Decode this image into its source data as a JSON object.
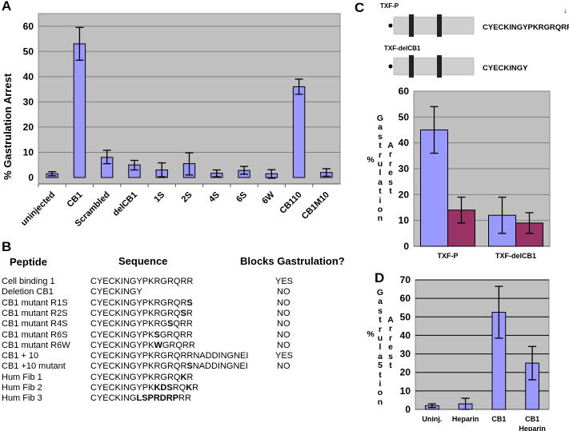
{
  "panels": {
    "a": "A",
    "b": "B",
    "c": "C",
    "d": "D"
  },
  "chart_data": [
    {
      "id": "A",
      "type": "bar",
      "ylabel": "% Gastrulation Arrest",
      "xlabel": "",
      "ylim": [
        0,
        65
      ],
      "yticks": [
        0,
        10,
        20,
        30,
        40,
        50,
        60
      ],
      "grid": true,
      "categories": [
        "uninjected",
        "CB1",
        "Scrambled",
        "delCB1",
        "1S",
        "2S",
        "4S",
        "6S",
        "6W",
        "CB110",
        "CB1M10"
      ],
      "series": [
        {
          "color": "#9999ff",
          "values": [
            1.5,
            53,
            8,
            5,
            3,
            5.5,
            1.7,
            2.8,
            1.5,
            36,
            2
          ],
          "error_low": [
            0.7,
            46.5,
            5.5,
            3,
            0.3,
            1,
            0.3,
            1.3,
            -0.3,
            33,
            0.5
          ],
          "error_high": [
            2.3,
            59.5,
            10.8,
            6.8,
            5.8,
            9.8,
            3,
            4.4,
            3.1,
            39,
            3.5
          ]
        }
      ]
    },
    {
      "id": "C",
      "type": "bar",
      "ylabel": "% Gastrulation Arrest",
      "ylim": [
        0,
        60
      ],
      "yticks": [
        0,
        10,
        20,
        30,
        40,
        50,
        60
      ],
      "grid": true,
      "categories": [
        "TXF-P",
        "TXF-delCB1"
      ],
      "series": [
        {
          "color": "#9999ff",
          "values": [
            45,
            12
          ],
          "error_low": [
            36,
            5
          ],
          "error_high": [
            54,
            19
          ]
        },
        {
          "color": "#993366",
          "values": [
            14,
            9
          ],
          "error_low": [
            9,
            5
          ],
          "error_high": [
            19,
            13
          ]
        }
      ]
    },
    {
      "id": "D",
      "type": "bar",
      "ylabel": "% Gastrula5tion Arrest",
      "ylim": [
        0,
        70
      ],
      "yticks": [
        0,
        10,
        20,
        30,
        40,
        50,
        60,
        70
      ],
      "grid": true,
      "categories": [
        "Uninj.",
        "Heparin",
        "CB1",
        "CB1\nHeparin"
      ],
      "series": [
        {
          "color": "#9999ff",
          "values": [
            2,
            3,
            52.5,
            25
          ],
          "error_low": [
            1,
            0,
            38.5,
            16
          ],
          "error_high": [
            3,
            6,
            66.5,
            34
          ]
        }
      ]
    }
  ],
  "diagram_c": {
    "constructs": [
      {
        "name": "TXF-P",
        "sequence": "CYECKINGYPKRGRQRR"
      },
      {
        "name": "TXF-delCB1",
        "sequence": "CYECKINGY"
      }
    ],
    "arrow": "↓"
  },
  "table_b": {
    "headers": [
      "Peptide",
      "Sequence",
      "Blocks Gastrulation?"
    ],
    "rows": [
      {
        "peptide": "Cell binding 1",
        "seq": [
          {
            "t": "CYECKINGYPKRGRQRR",
            "b": false
          }
        ],
        "blocks": "YES"
      },
      {
        "peptide": "Deletion CB1",
        "seq": [
          {
            "t": "CYECKINGY",
            "b": false
          }
        ],
        "blocks": "NO"
      },
      {
        "peptide": "CB1 mutant R1S",
        "seq": [
          {
            "t": "CYECKINGYPKRGRQR",
            "b": false
          },
          {
            "t": "S",
            "b": true
          }
        ],
        "blocks": "NO"
      },
      {
        "peptide": "CB1 mutant R2S",
        "seq": [
          {
            "t": "CYECKINGYPKRGRQ",
            "b": false
          },
          {
            "t": "S",
            "b": true
          },
          {
            "t": "R",
            "b": false
          }
        ],
        "blocks": "NO"
      },
      {
        "peptide": "CB1 mutant R4S",
        "seq": [
          {
            "t": "CYECKINGYPKRG",
            "b": false
          },
          {
            "t": "S",
            "b": true
          },
          {
            "t": "QRR",
            "b": false
          }
        ],
        "blocks": "NO"
      },
      {
        "peptide": "CB1 mutant R6S",
        "seq": [
          {
            "t": "CYECKINGYPK",
            "b": false
          },
          {
            "t": "S",
            "b": true
          },
          {
            "t": "GRQRR",
            "b": false
          }
        ],
        "blocks": "NO"
      },
      {
        "peptide": "CB1 mutant R6W",
        "seq": [
          {
            "t": "CYECKINGYPK",
            "b": false
          },
          {
            "t": "W",
            "b": true
          },
          {
            "t": "GRQRR",
            "b": false
          }
        ],
        "blocks": "NO"
      },
      {
        "peptide": "CB1 + 10",
        "seq": [
          {
            "t": "CYECKINGYPKRGRQRRNADDINGNEI",
            "b": false
          }
        ],
        "blocks": "YES"
      },
      {
        "peptide": "CB1 +10 mutant",
        "seq": [
          {
            "t": "CYECKINGYPKRGRQR",
            "b": false
          },
          {
            "t": "S",
            "b": true
          },
          {
            "t": "NADDINGNEI",
            "b": false
          }
        ],
        "blocks": "NO"
      },
      {
        "peptide": "Hum Fib 1",
        "seq": [
          {
            "t": "CYECKINGYPKRGRQ",
            "b": false
          },
          {
            "t": "K",
            "b": true
          },
          {
            "t": "R",
            "b": false
          }
        ],
        "blocks": ""
      },
      {
        "peptide": "Hum Fib 2",
        "seq": [
          {
            "t": "CYECKINGYPK",
            "b": false
          },
          {
            "t": "KDS",
            "b": true
          },
          {
            "t": "RQ",
            "b": false
          },
          {
            "t": "K",
            "b": true
          },
          {
            "t": "R",
            "b": false
          }
        ],
        "blocks": ""
      },
      {
        "peptide": "Hum Fib 3",
        "seq": [
          {
            "t": "CYECKING",
            "b": false
          },
          {
            "t": "LSPRDRP",
            "b": true
          },
          {
            "t": "RR",
            "b": false
          }
        ],
        "blocks": ""
      }
    ]
  }
}
